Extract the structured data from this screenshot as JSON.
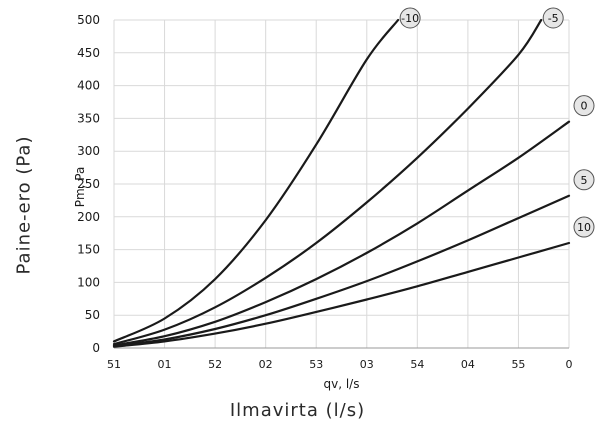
{
  "page": {
    "outer_ylabel": "Paine-ero (Pa)",
    "outer_xlabel": "Ilmavirta (l/s)"
  },
  "chart_data": {
    "type": "line",
    "ylabel": "Pm, Pa",
    "xlabel": "qv, l/s",
    "ylim": [
      0,
      500
    ],
    "y_ticks": [
      "0",
      "50",
      "100",
      "150",
      "200",
      "250",
      "300",
      "350",
      "400",
      "450",
      "500"
    ],
    "x_tick_labels": [
      "51",
      "01",
      "52",
      "02",
      "53",
      "03",
      "54",
      "04",
      "55",
      "0"
    ],
    "x_domain": [
      0,
      9
    ],
    "grid": true,
    "line_color": "#1a1a1a",
    "badge_fill": "#e6e6e6",
    "series": [
      {
        "name": "-10",
        "x": [
          0,
          1,
          2,
          3,
          4,
          5,
          5.62
        ],
        "y": [
          10,
          45,
          105,
          195,
          310,
          440,
          500
        ]
      },
      {
        "name": "-5",
        "x": [
          0,
          1,
          2,
          3,
          4,
          5,
          6,
          7,
          8,
          8.45
        ],
        "y": [
          6,
          28,
          62,
          107,
          160,
          222,
          290,
          365,
          447,
          500
        ]
      },
      {
        "name": "0",
        "x": [
          0,
          1,
          2,
          3,
          4,
          5,
          6,
          7,
          8,
          9
        ],
        "y": [
          4,
          18,
          40,
          70,
          105,
          145,
          190,
          240,
          290,
          345
        ]
      },
      {
        "name": "5",
        "x": [
          0,
          1,
          2,
          3,
          4,
          5,
          6,
          7,
          8,
          9
        ],
        "y": [
          3,
          13,
          29,
          50,
          75,
          102,
          132,
          164,
          198,
          232
        ]
      },
      {
        "name": "10",
        "x": [
          0,
          1,
          2,
          3,
          4,
          5,
          6,
          7,
          8,
          9
        ],
        "y": [
          2,
          10,
          22,
          37,
          55,
          74,
          94,
          116,
          138,
          160
        ]
      }
    ]
  }
}
